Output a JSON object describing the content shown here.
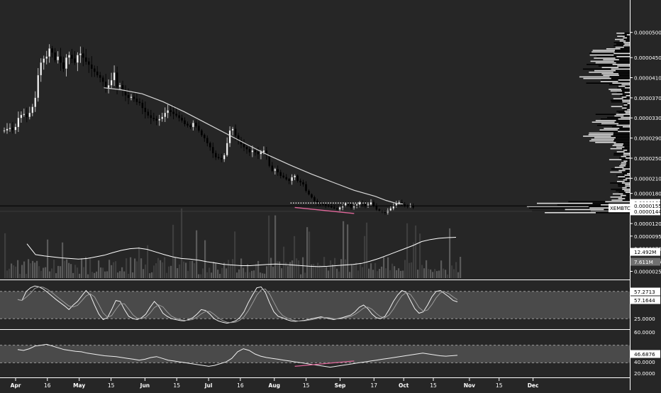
{
  "chart_data": {
    "type": "candlestick",
    "symbol": "XEMBTC",
    "colors": {
      "background": "#262626",
      "up": "#ffffff",
      "down": "#000000",
      "ma": "#d8d8d8",
      "divergence": "#e0679a",
      "band": "#4a4a4a",
      "grid_dash": "#9a9a9a"
    },
    "x_axis": {
      "ticks": [
        "Apr",
        "16",
        "May",
        "15",
        "Jun",
        "15",
        "Jul",
        "16",
        "Aug",
        "15",
        "Sep",
        "17",
        "Oct",
        "15",
        "Nov",
        "15",
        "Dec"
      ],
      "tick_days": [
        0,
        15,
        30,
        45,
        61,
        76,
        91,
        106,
        122,
        137,
        153,
        169,
        183,
        197,
        214,
        228,
        244
      ]
    },
    "price_axis": {
      "ticks": [
        "0.00005000",
        "0.00004500",
        "0.00004100",
        "0.00003700",
        "0.00003300",
        "0.00002900",
        "0.00002500",
        "0.00002100",
        "0.00001800",
        "0.00001200",
        "0.00000950",
        "0.00000700",
        "0.00000450",
        "0.00000250"
      ],
      "tick_values": [
        5e-05,
        4.5e-05,
        4.1e-05,
        3.7e-05,
        3.3e-05,
        2.9e-05,
        2.5e-05,
        2.1e-05,
        1.8e-05,
        1.2e-05,
        9.5e-06,
        7e-06,
        4.5e-06,
        2.5e-06
      ],
      "ylim": [
        2e-06,
        5.25e-05
      ],
      "labels": {
        "high_line": "0.00001608",
        "symbol": "XEMBTC",
        "last_price": "0.00001552",
        "low_line": "0.00001443"
      },
      "high_line_value": 1.608e-05,
      "last_price_value": 1.552e-05,
      "low_line_value": 1.443e-05
    },
    "price_series": [
      3.05e-05,
      3.08e-05,
      3.1e-05,
      3.06e-05,
      3.12e-05,
      3.3e-05,
      3.36e-05,
      3.38e-05,
      3.32e-05,
      3.4e-05,
      3.52e-05,
      3.7e-05,
      4.15e-05,
      4.4e-05,
      4.48e-05,
      4.52e-05,
      4.68e-05,
      4.6e-05,
      4.45e-05,
      4.52e-05,
      4.4e-05,
      4.28e-05,
      4.5e-05,
      4.55e-05,
      4.48e-05,
      4.4e-05,
      4.55e-05,
      4.58e-05,
      4.5e-05,
      4.42e-05,
      4.36e-05,
      4.28e-05,
      4.22e-05,
      4.15e-05,
      4.1e-05,
      4.02e-05,
      3.9e-05,
      3.95e-05,
      4.05e-05,
      4.2e-05,
      3.92e-05,
      3.95e-05,
      3.85e-05,
      3.75e-05,
      3.7e-05,
      3.72e-05,
      3.68e-05,
      3.62e-05,
      3.6e-05,
      3.5e-05,
      3.42e-05,
      3.35e-05,
      3.3e-05,
      3.28e-05,
      3.25e-05,
      3.28e-05,
      3.32e-05,
      3.4e-05,
      3.45e-05,
      3.42e-05,
      3.38e-05,
      3.35e-05,
      3.3e-05,
      3.25e-05,
      3.18e-05,
      3.15e-05,
      3.12e-05,
      3.2e-05,
      3.14e-05,
      3.05e-05,
      2.96e-05,
      2.9e-05,
      2.8e-05,
      2.72e-05,
      2.6e-05,
      2.52e-05,
      2.5e-05,
      2.48e-05,
      2.56e-05,
      2.8e-05,
      3.05e-05,
      3.08e-05,
      2.95e-05,
      2.85e-05,
      2.78e-05,
      2.72e-05,
      2.68e-05,
      2.62e-05,
      2.65e-05,
      2.62e-05,
      2.58e-05,
      2.62e-05,
      2.65e-05,
      2.56e-05,
      2.35e-05,
      2.25e-05,
      2.28e-05,
      2.22e-05,
      2.15e-05,
      2.12e-05,
      2.08e-05,
      2.05e-05,
      2.12e-05,
      2.15e-05,
      2.05e-05,
      2.02e-05,
      1.98e-05,
      1.85e-05,
      1.78e-05,
      1.72e-05,
      1.65e-05,
      1.62e-05,
      1.6e-05,
      1.58e-05,
      1.56e-05,
      1.54e-05,
      1.52e-05,
      1.5e-05,
      1.48e-05,
      1.52e-05,
      1.55e-05,
      1.6e-05,
      1.58e-05,
      1.52e-05,
      1.55e-05,
      1.58e-05,
      1.62e-05,
      1.6e-05,
      1.56e-05,
      1.58e-05,
      1.62e-05,
      1.55e-05,
      1.48e-05,
      1.45e-05,
      1.43e-05,
      1.42e-05,
      1.46e-05,
      1.5e-05,
      1.55e-05,
      1.6e-05,
      1.62e-05,
      1.58e-05,
      1.56e-05,
      1.55e-05,
      1.55e-05,
      1.52e-05
    ],
    "price_label_reads": [
      {
        "label": "Apr",
        "value": 3.05e-05
      },
      {
        "label": "16 Apr",
        "value": 4.48e-05
      },
      {
        "label": "May",
        "value": 4.4e-05
      },
      {
        "label": "15 May",
        "value": 3.95e-05
      },
      {
        "label": "Jun",
        "value": 3.45e-05
      },
      {
        "label": "15 Jun",
        "value": 2.72e-05
      },
      {
        "label": "Jul",
        "value": 3.05e-05
      },
      {
        "label": "16 Jul",
        "value": 2.62e-05
      },
      {
        "label": "Aug",
        "value": 2.15e-05
      },
      {
        "label": "15 Aug",
        "value": 1.62e-05
      },
      {
        "label": "Sep",
        "value": 1.62e-05
      },
      {
        "label": "17 Sep",
        "value": 1.43e-05
      },
      {
        "label": "end",
        "value": 1.55e-05
      }
    ],
    "ma_series": [
      3.9e-05,
      3.86e-05,
      3.78e-05,
      3.62e-05,
      3.42e-05,
      3.2e-05,
      2.98e-05,
      2.76e-05,
      2.55e-05,
      2.36e-05,
      2.18e-05,
      2.02e-05,
      1.86e-05,
      1.74e-05,
      1.66e-05,
      1.6e-05,
      1.59e-05
    ],
    "ma_days": [
      47,
      55,
      65,
      75,
      85,
      95,
      105,
      115,
      125,
      135,
      145,
      155,
      165,
      175,
      180,
      185,
      188
    ],
    "divergence_price": {
      "days": [
        137,
        165
      ],
      "values": [
        1.52e-05,
        1.4e-05
      ]
    },
    "volume": {
      "labels": {
        "upper": "12.492M",
        "lower": "7.611M"
      },
      "scale_max": 20000000,
      "ma_value": 12492000,
      "last_value": 7611000,
      "ma_series": [
        10.5,
        7.2,
        6.8,
        6.5,
        6.2,
        6.0,
        5.8,
        6.0,
        6.5,
        7.0,
        7.8,
        8.5,
        9.0,
        9.2,
        8.8,
        8.0,
        7.2,
        6.5,
        6.0,
        5.8,
        5.5,
        5.0,
        4.6,
        4.2,
        4.0,
        3.8,
        3.8,
        4.0,
        4.2,
        4.3,
        4.2,
        4.0,
        3.8,
        3.6,
        3.5,
        3.6,
        3.8,
        4.0,
        4.2,
        4.5,
        5.2,
        6.0,
        7.0,
        8.0,
        9.0,
        10.0,
        11.2,
        11.8,
        12.2,
        12.4,
        12.5
      ]
    },
    "stoch": {
      "labels": [
        "57.2713",
        "57.1644",
        "25.0000"
      ],
      "label_values": [
        57.27,
        57.16,
        25.0
      ],
      "band": [
        20,
        80
      ],
      "k_series": [
        62,
        60,
        80,
        88,
        92,
        90,
        85,
        78,
        70,
        62,
        55,
        48,
        40,
        50,
        58,
        70,
        82,
        72,
        50,
        30,
        18,
        22,
        40,
        60,
        58,
        40,
        25,
        20,
        18,
        22,
        30,
        45,
        58,
        48,
        32,
        25,
        20,
        18,
        16,
        15,
        18,
        22,
        30,
        40,
        38,
        30,
        20,
        15,
        12,
        10,
        12,
        15,
        22,
        35,
        55,
        72,
        88,
        90,
        78,
        55,
        35,
        25,
        22,
        18,
        15,
        14,
        15,
        16,
        18,
        20,
        22,
        24,
        22,
        20,
        18,
        20,
        22,
        25,
        28,
        35,
        45,
        50,
        42,
        30,
        22,
        20,
        25,
        40,
        58,
        72,
        82,
        78,
        60,
        42,
        32,
        35,
        50,
        68,
        80,
        82,
        75,
        68,
        60,
        57
      ]
    },
    "rsi": {
      "labels": [
        "60.0000",
        "46.6876",
        "40.0000",
        "20.0000"
      ],
      "label_values": [
        60,
        46.69,
        40,
        20
      ],
      "band": [
        30,
        70
      ],
      "series": [
        60,
        58,
        62,
        68,
        70,
        72,
        68,
        64,
        60,
        58,
        56,
        55,
        52,
        50,
        48,
        46,
        45,
        44,
        42,
        40,
        38,
        36,
        38,
        42,
        44,
        40,
        36,
        34,
        32,
        30,
        28,
        26,
        24,
        22,
        24,
        28,
        32,
        40,
        55,
        62,
        58,
        50,
        45,
        42,
        40,
        38,
        36,
        34,
        32,
        30,
        28,
        26,
        24,
        22,
        20,
        22,
        24,
        26,
        28,
        30,
        32,
        34,
        36,
        38,
        40,
        42,
        44,
        46,
        48,
        50,
        52,
        50,
        48,
        46,
        45,
        46,
        47
      ],
      "divergence": {
        "days": [
          137,
          165
        ],
        "values": [
          22,
          34
        ]
      }
    }
  }
}
